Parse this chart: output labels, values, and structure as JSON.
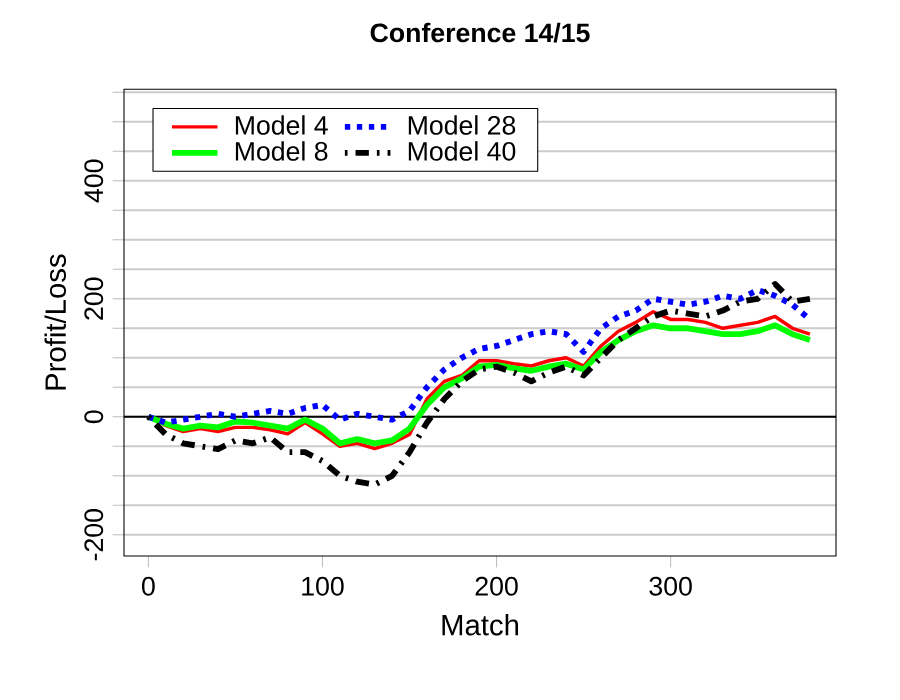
{
  "chart_data": {
    "type": "line",
    "title": "Conference 14/15",
    "xlabel": "Match",
    "ylabel": "Profit/Loss",
    "x": [
      0,
      10,
      20,
      30,
      40,
      50,
      60,
      70,
      80,
      90,
      100,
      110,
      120,
      130,
      140,
      150,
      160,
      170,
      180,
      190,
      200,
      210,
      220,
      230,
      240,
      250,
      260,
      270,
      280,
      290,
      300,
      310,
      320,
      330,
      340,
      350,
      360,
      370,
      380
    ],
    "series": [
      {
        "name": "Model 4",
        "color": "#ff0000",
        "line_style": "solid",
        "values": [
          0,
          -15,
          -25,
          -20,
          -25,
          -18,
          -18,
          -22,
          -29,
          -10,
          -29,
          -50,
          -45,
          -54,
          -45,
          -30,
          30,
          60,
          70,
          95,
          95,
          90,
          86,
          95,
          100,
          86,
          120,
          145,
          160,
          178,
          165,
          165,
          160,
          150,
          155,
          160,
          170,
          150,
          140
        ]
      },
      {
        "name": "Model 8",
        "color": "#00ff00",
        "line_style": "solid",
        "values": [
          0,
          -12,
          -20,
          -15,
          -18,
          -8,
          -10,
          -15,
          -20,
          -5,
          -20,
          -45,
          -38,
          -45,
          -40,
          -20,
          20,
          50,
          65,
          85,
          88,
          82,
          78,
          85,
          90,
          80,
          110,
          130,
          145,
          155,
          150,
          150,
          145,
          140,
          140,
          145,
          155,
          140,
          130
        ]
      },
      {
        "name": "Model 28",
        "color": "#0000ff",
        "line_style": "dotted",
        "values": [
          0,
          -10,
          -5,
          0,
          5,
          0,
          5,
          10,
          5,
          15,
          20,
          -5,
          5,
          0,
          -5,
          10,
          50,
          80,
          100,
          115,
          120,
          130,
          140,
          145,
          140,
          110,
          150,
          170,
          180,
          200,
          195,
          190,
          195,
          205,
          200,
          215,
          205,
          190,
          165
        ]
      },
      {
        "name": "Model 40",
        "color": "#000000",
        "line_style": "dashed",
        "values": [
          0,
          -30,
          -45,
          -50,
          -55,
          -40,
          -45,
          -35,
          -60,
          -60,
          -75,
          -100,
          -110,
          -115,
          -100,
          -60,
          -10,
          30,
          60,
          80,
          85,
          75,
          60,
          75,
          85,
          70,
          100,
          130,
          150,
          170,
          180,
          175,
          170,
          180,
          195,
          200,
          225,
          195,
          200
        ]
      }
    ],
    "xlim": [
      -14,
      395
    ],
    "ylim": [
      -236,
      555
    ],
    "xticks": [
      0,
      100,
      200,
      300
    ],
    "yticks": [
      -200,
      {
        "value": -150,
        "label": null
      },
      {
        "value": -100,
        "label": null
      },
      {
        "value": -50,
        "label": null
      },
      0,
      {
        "value": 50,
        "label": null
      },
      {
        "value": 100,
        "label": null
      },
      {
        "value": 150,
        "label": null
      },
      200,
      {
        "value": 250,
        "label": null
      },
      {
        "value": 300,
        "label": null
      },
      {
        "value": 350,
        "label": null
      },
      400,
      {
        "value": 450,
        "label": null
      },
      {
        "value": 500,
        "label": null
      },
      {
        "value": 550,
        "label": null
      }
    ],
    "ref_lines": [
      {
        "axis": "y",
        "value": 0,
        "color": "#000000"
      }
    ],
    "grid": "y",
    "legend": "top left",
    "marker": "none"
  }
}
